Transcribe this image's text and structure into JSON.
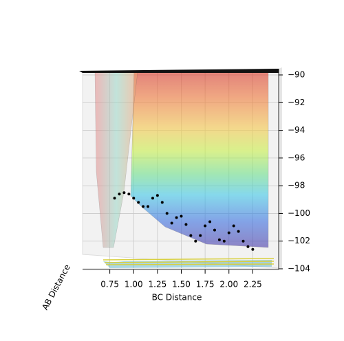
{
  "chart_data": {
    "type": "surface3d",
    "xlabel": "BC Distance",
    "ylabel": "AB Distance",
    "xlim": [
      0.5,
      2.5
    ],
    "xticks": [
      {
        "value": 0.75,
        "label": "0.75"
      },
      {
        "value": 1.0,
        "label": "1.00"
      },
      {
        "value": 1.25,
        "label": "1.25"
      },
      {
        "value": 1.5,
        "label": "1.50"
      },
      {
        "value": 1.75,
        "label": "1.75"
      },
      {
        "value": 2.0,
        "label": "2.00"
      },
      {
        "value": 2.25,
        "label": "2.25"
      }
    ],
    "zlim": [
      -104,
      -90
    ],
    "zticks": [
      {
        "value": -90,
        "label": "−90"
      },
      {
        "value": -92,
        "label": "−92"
      },
      {
        "value": -94,
        "label": "−94"
      },
      {
        "value": -96,
        "label": "−96"
      },
      {
        "value": -98,
        "label": "−98"
      },
      {
        "value": -100,
        "label": "−100"
      },
      {
        "value": -102,
        "label": "−102"
      },
      {
        "value": -104,
        "label": "−104"
      }
    ],
    "grid": true,
    "series": [
      {
        "color": "#000000",
        "x": [
          0.8,
          0.85,
          0.9,
          0.95,
          1.0,
          1.05,
          1.1,
          1.15,
          1.2,
          1.25,
          1.3,
          1.35,
          1.4,
          1.45,
          1.5,
          1.55,
          1.6,
          1.65,
          1.7,
          1.75,
          1.8,
          1.85,
          1.9,
          1.95,
          2.0,
          2.05,
          2.1,
          2.15,
          2.2,
          2.25
        ],
        "values": [
          -98.9,
          -98.6,
          -98.5,
          -98.6,
          -98.9,
          -99.2,
          -99.5,
          -99.5,
          -98.9,
          -98.7,
          -99.2,
          -100.0,
          -100.7,
          -100.3,
          -100.2,
          -100.8,
          -101.6,
          -102.0,
          -101.6,
          -100.9,
          -100.6,
          -101.2,
          -101.9,
          -102.0,
          -101.4,
          -100.9,
          -101.3,
          -102.0,
          -102.4,
          -102.6
        ]
      }
    ]
  }
}
